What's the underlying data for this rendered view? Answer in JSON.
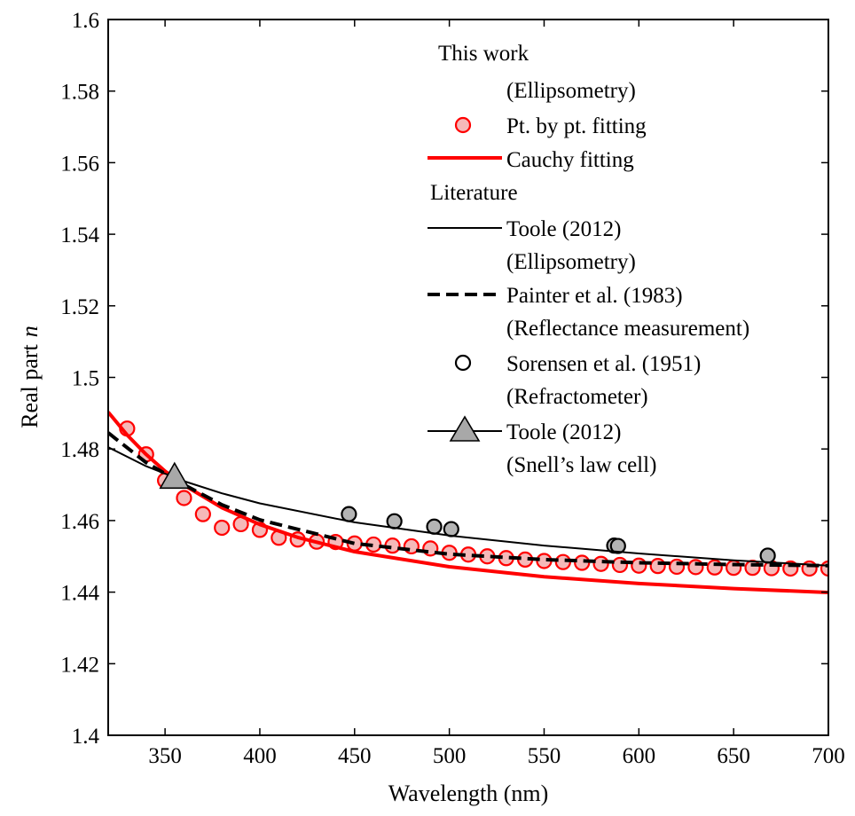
{
  "chart_data": {
    "type": "scatter",
    "xlabel": "Wavelength (nm)",
    "ylabel_prefix": "Real part",
    "ylabel_symbol": "n",
    "xlim": [
      320,
      700
    ],
    "ylim": [
      1.4,
      1.6
    ],
    "xticks": [
      350,
      400,
      450,
      500,
      550,
      600,
      650,
      700
    ],
    "xtick_labels": [
      "350",
      "400",
      "450",
      "500",
      "550",
      "600",
      "650",
      "700"
    ],
    "yticks": [
      1.4,
      1.42,
      1.44,
      1.46,
      1.48,
      1.5,
      1.52,
      1.54,
      1.56,
      1.58,
      1.6
    ],
    "ytick_labels": [
      "1.4",
      "1.42",
      "1.44",
      "1.46",
      "1.48",
      "1.5",
      "1.52",
      "1.54",
      "1.56",
      "1.58",
      "1.6"
    ],
    "grid": false,
    "legend_position": "top-right",
    "legend_headers": {
      "this_work": "This work",
      "ellipsometry_1": "(Ellipsometry)",
      "literature": "Literature"
    },
    "series": [
      {
        "name": "Pt. by pt. fitting",
        "kind": "points",
        "color": "#ff0000",
        "fill": "#f5b9b9",
        "x": [
          330,
          340,
          350,
          360,
          370,
          380,
          390,
          400,
          410,
          420,
          430,
          440,
          450,
          460,
          470,
          480,
          490,
          500,
          510,
          520,
          530,
          540,
          550,
          560,
          570,
          580,
          590,
          600,
          610,
          620,
          630,
          640,
          650,
          660,
          670,
          680,
          690,
          700
        ],
        "y": [
          1.4857,
          1.4785,
          1.4712,
          1.4663,
          1.4618,
          1.458,
          1.459,
          1.4574,
          1.4552,
          1.4547,
          1.4541,
          1.454,
          1.4536,
          1.4533,
          1.453,
          1.4528,
          1.4522,
          1.451,
          1.4505,
          1.45,
          1.4495,
          1.4491,
          1.4487,
          1.4484,
          1.4482,
          1.4479,
          1.4476,
          1.4474,
          1.4473,
          1.4471,
          1.447,
          1.4469,
          1.4468,
          1.4468,
          1.4467,
          1.4466,
          1.4466,
          1.4466
        ]
      },
      {
        "name": "Cauchy fitting",
        "kind": "line",
        "color": "#ff0000",
        "style": "solid-thick",
        "x": [
          320,
          330,
          340,
          350,
          360,
          380,
          400,
          420,
          450,
          500,
          550,
          600,
          650,
          700
        ],
        "y": [
          1.4903,
          1.4839,
          1.4785,
          1.4738,
          1.4699,
          1.4636,
          1.4589,
          1.4553,
          1.4513,
          1.4471,
          1.4443,
          1.4424,
          1.441,
          1.4399
        ]
      },
      {
        "name": "Toole (2012)",
        "name_note": "(Ellipsometry)",
        "kind": "line",
        "color": "#000000",
        "style": "solid-thin",
        "x": [
          320,
          340,
          360,
          380,
          400,
          450,
          500,
          550,
          600,
          650,
          700
        ],
        "y": [
          1.4805,
          1.4752,
          1.471,
          1.4676,
          1.4648,
          1.4595,
          1.4558,
          1.453,
          1.4508,
          1.4489,
          1.4474
        ]
      },
      {
        "name": "Painter et al. (1983)",
        "name_note": "(Reflectance measurement)",
        "kind": "line",
        "color": "#000000",
        "style": "dashed-thick",
        "x": [
          320,
          340,
          360,
          380,
          400,
          450,
          500,
          550,
          600,
          650,
          700
        ],
        "y": [
          1.4845,
          1.4762,
          1.47,
          1.4644,
          1.4602,
          1.4536,
          1.4506,
          1.4491,
          1.4482,
          1.4477,
          1.4474
        ]
      },
      {
        "name": "Sorensen et al. (1951)",
        "name_note": "(Refractometer)",
        "kind": "points",
        "color": "#000000",
        "fill": "#b4b4b4",
        "x": [
          447,
          471,
          492,
          501,
          587,
          589,
          668
        ],
        "y": [
          1.4618,
          1.4598,
          1.4583,
          1.4576,
          1.453,
          1.4529,
          1.4502
        ]
      },
      {
        "name": "Toole (2012)",
        "name_note": "(Snell’s law cell)",
        "kind": "triangle",
        "color": "#000000",
        "fill": "#a8a8a8",
        "x": [
          355
        ],
        "y": [
          1.4718
        ]
      }
    ]
  }
}
